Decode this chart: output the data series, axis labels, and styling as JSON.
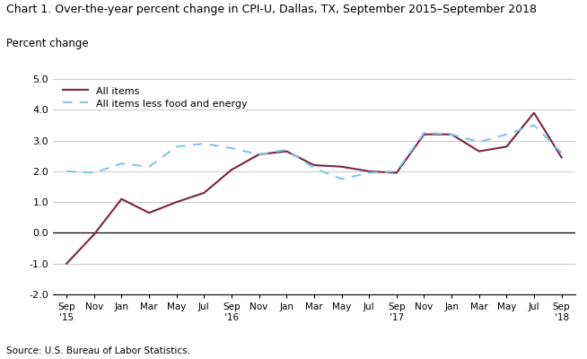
{
  "title": "Chart 1. Over-the-year percent change in CPI-U, Dallas, TX, September 2015–September 2018",
  "ylabel": "Percent change",
  "source": "Source: U.S. Bureau of Labor Statistics.",
  "ylim": [
    -2.0,
    5.0
  ],
  "yticks": [
    -2.0,
    -1.0,
    0.0,
    1.0,
    2.0,
    3.0,
    4.0,
    5.0
  ],
  "all_items_color": "#7B2346",
  "core_color": "#7EC8E3",
  "all_items_label": "All items",
  "core_label": "All items less food and energy",
  "tick_labels": [
    "Sep\n'15",
    "Nov",
    "Jan",
    "Mar",
    "May",
    "Jul",
    "Sep\n'16",
    "Nov",
    "Jan",
    "Mar",
    "May",
    "Jul",
    "Sep\n'17",
    "Nov",
    "Jan",
    "Mar",
    "May",
    "Jul",
    "Sep\n'18"
  ],
  "all_items": [
    -1.0,
    -0.05,
    1.1,
    0.65,
    1.0,
    1.3,
    2.05,
    2.55,
    2.65,
    2.2,
    2.15,
    2.0,
    1.95,
    3.2,
    3.2,
    2.65,
    2.8,
    3.9,
    2.45
  ],
  "core": [
    2.0,
    1.95,
    2.25,
    2.15,
    2.8,
    2.9,
    2.75,
    2.55,
    2.7,
    2.1,
    1.75,
    1.95,
    2.0,
    3.25,
    3.2,
    2.95,
    3.2,
    3.5,
    2.6
  ]
}
